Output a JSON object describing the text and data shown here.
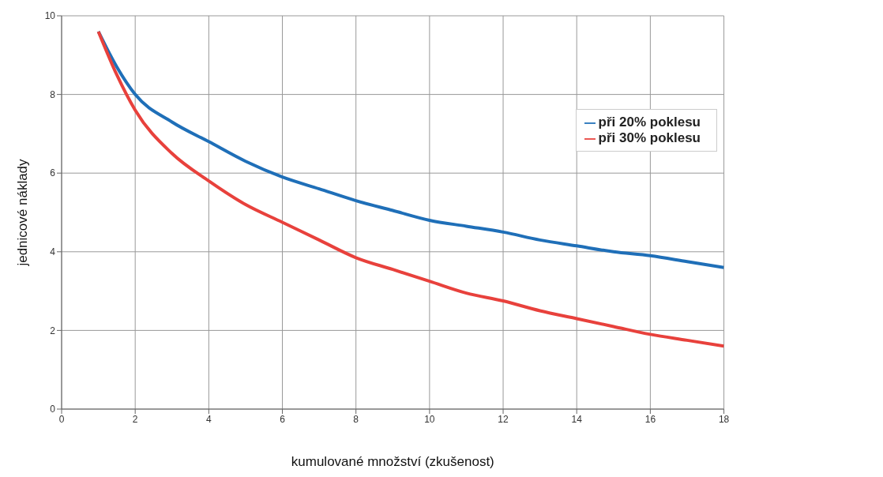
{
  "chart_data": {
    "type": "line",
    "xlabel": "kumulované množství (zkušenost)",
    "ylabel": "jednicové náklady",
    "x": [
      1,
      1.5,
      2,
      3,
      4,
      5,
      6,
      7,
      8,
      9,
      10,
      11,
      12,
      13,
      14,
      15,
      16,
      17,
      18
    ],
    "series": [
      {
        "name": "při 20% poklesu",
        "color": "#1f6fb8",
        "values": [
          9.6,
          8.7,
          8.0,
          7.3,
          6.8,
          6.3,
          5.9,
          5.6,
          5.3,
          5.05,
          4.8,
          4.65,
          4.5,
          4.3,
          4.15,
          4.0,
          3.9,
          3.75,
          3.6
        ]
      },
      {
        "name": "při 30% poklesu",
        "color": "#e8413c",
        "values": [
          9.6,
          8.5,
          7.6,
          6.5,
          5.8,
          5.2,
          4.75,
          4.3,
          3.85,
          3.55,
          3.25,
          2.95,
          2.75,
          2.5,
          2.3,
          2.1,
          1.9,
          1.75,
          1.6
        ]
      }
    ],
    "xlim": [
      0,
      18
    ],
    "xticks": [
      0,
      2,
      4,
      6,
      8,
      10,
      12,
      14,
      16,
      18
    ],
    "ylim": [
      0,
      10
    ],
    "yticks": [
      0,
      2,
      4,
      6,
      8,
      10
    ],
    "grid": true,
    "legend": "top right",
    "marker": "none",
    "line_style": "solid"
  }
}
